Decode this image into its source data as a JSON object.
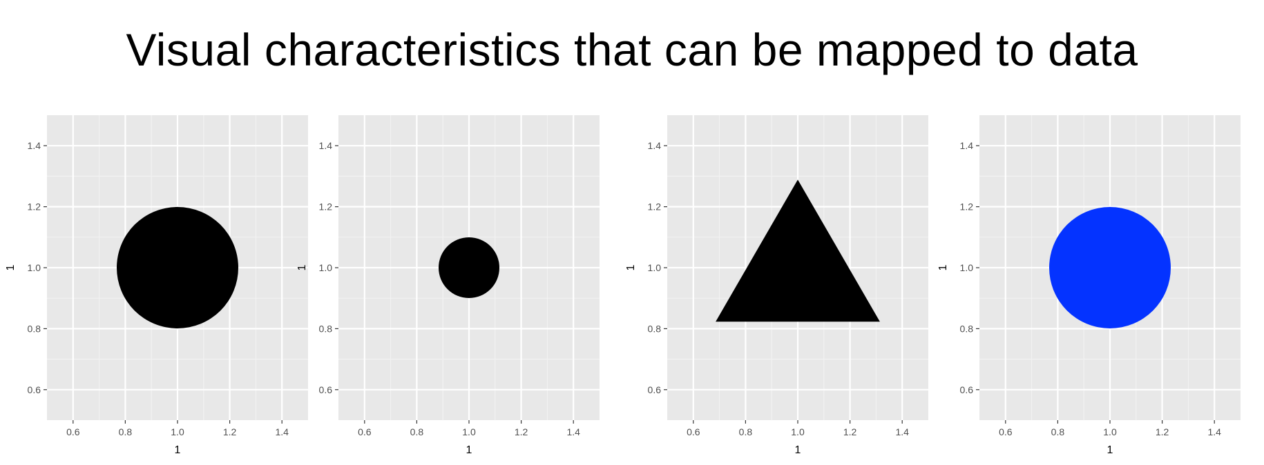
{
  "title": "Visual characteristics that can be mapped to data",
  "colors": {
    "panel_background": "#e8e8e8",
    "grid_major": "#ffffff",
    "grid_minor": "#f3f3f3",
    "tick_label": "#4d4d4d",
    "tick_mark": "#333333"
  },
  "chart_data": [
    {
      "type": "scatter",
      "xlabel": "1",
      "ylabel": "1",
      "xlim": [
        0.5,
        1.5
      ],
      "ylim": [
        0.5,
        1.5
      ],
      "x_ticks": [
        0.6,
        0.8,
        1.0,
        1.2,
        1.4
      ],
      "y_ticks": [
        0.6,
        0.8,
        1.0,
        1.2,
        1.4
      ],
      "x_tick_labels": [
        "0.6",
        "0.8",
        "1.0",
        "1.2",
        "1.4"
      ],
      "y_tick_labels": [
        "0.6",
        "0.8",
        "1.0",
        "1.2",
        "1.4"
      ],
      "grid": true,
      "points": [
        {
          "x": 1.0,
          "y": 1.0,
          "shape": "circle",
          "size": "large",
          "color": "#000000"
        }
      ]
    },
    {
      "type": "scatter",
      "xlabel": "1",
      "ylabel": "1",
      "xlim": [
        0.5,
        1.5
      ],
      "ylim": [
        0.5,
        1.5
      ],
      "x_ticks": [
        0.6,
        0.8,
        1.0,
        1.2,
        1.4
      ],
      "y_ticks": [
        0.6,
        0.8,
        1.0,
        1.2,
        1.4
      ],
      "x_tick_labels": [
        "0.6",
        "0.8",
        "1.0",
        "1.2",
        "1.4"
      ],
      "y_tick_labels": [
        "0.6",
        "0.8",
        "1.0",
        "1.2",
        "1.4"
      ],
      "grid": true,
      "points": [
        {
          "x": 1.0,
          "y": 1.0,
          "shape": "circle",
          "size": "small",
          "color": "#000000"
        }
      ]
    },
    {
      "type": "scatter",
      "xlabel": "1",
      "ylabel": "1",
      "xlim": [
        0.5,
        1.5
      ],
      "ylim": [
        0.5,
        1.5
      ],
      "x_ticks": [
        0.6,
        0.8,
        1.0,
        1.2,
        1.4
      ],
      "y_ticks": [
        0.6,
        0.8,
        1.0,
        1.2,
        1.4
      ],
      "x_tick_labels": [
        "0.6",
        "0.8",
        "1.0",
        "1.2",
        "1.4"
      ],
      "y_tick_labels": [
        "0.6",
        "0.8",
        "1.0",
        "1.2",
        "1.4"
      ],
      "grid": true,
      "points": [
        {
          "x": 1.0,
          "y": 1.0,
          "shape": "triangle",
          "size": "large",
          "color": "#000000"
        }
      ]
    },
    {
      "type": "scatter",
      "xlabel": "1",
      "ylabel": "1",
      "xlim": [
        0.5,
        1.5
      ],
      "ylim": [
        0.5,
        1.5
      ],
      "x_ticks": [
        0.6,
        0.8,
        1.0,
        1.2,
        1.4
      ],
      "y_ticks": [
        0.6,
        0.8,
        1.0,
        1.2,
        1.4
      ],
      "x_tick_labels": [
        "0.6",
        "0.8",
        "1.0",
        "1.2",
        "1.4"
      ],
      "y_tick_labels": [
        "0.6",
        "0.8",
        "1.0",
        "1.2",
        "1.4"
      ],
      "grid": true,
      "points": [
        {
          "x": 1.0,
          "y": 1.0,
          "shape": "circle",
          "size": "large",
          "color": "#0433ff"
        }
      ]
    }
  ]
}
